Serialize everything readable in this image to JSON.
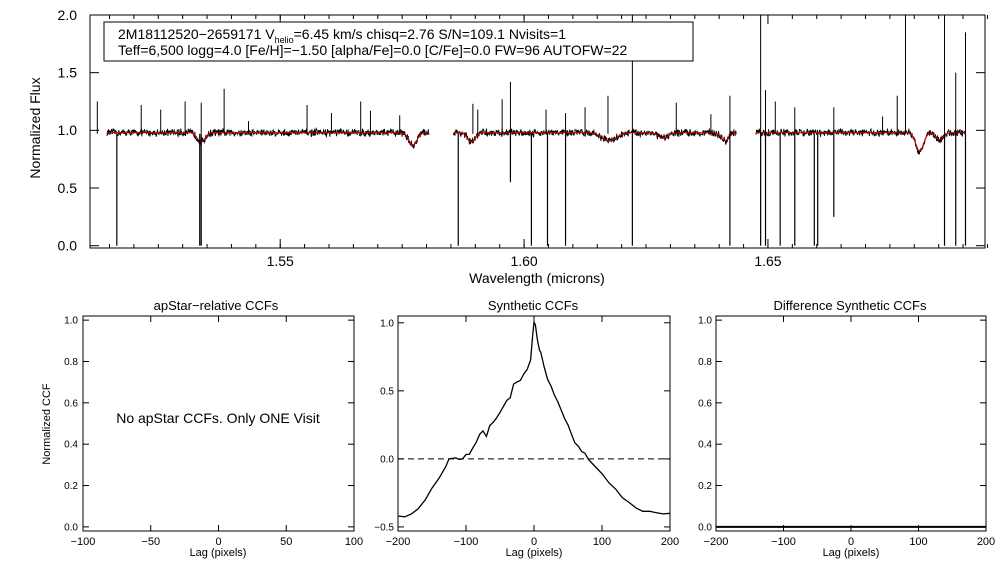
{
  "colors": {
    "axis": "#000000",
    "observed": "#000000",
    "model": "#cc0000",
    "background": "#ffffff"
  },
  "chart_data": [
    {
      "id": "spectrum",
      "type": "line",
      "title": "",
      "xlabel": "Wavelength (microns)",
      "ylabel": "Normalized Flux",
      "xlim": [
        1.511,
        1.6945
      ],
      "ylim": [
        -0.02,
        2.0
      ],
      "xticks": [
        1.55,
        1.6,
        1.65
      ],
      "xtick_labels": [
        "1.55",
        "1.60",
        "1.65"
      ],
      "yticks": [
        0.0,
        0.5,
        1.0,
        1.5,
        2.0
      ],
      "ytick_labels": [
        "0.0",
        "0.5",
        "1.0",
        "1.5",
        "2.0"
      ],
      "annotation": {
        "line1_prefix": "2M18112520−2659171  V",
        "line1_sub": "helio",
        "line1_suffix": "=6.45 km/s  chisq=2.76  S/N=109.1  Nvisits=1",
        "line2": "Teff=6,500 logg=4.0 [Fe/H]=−1.50 [alpha/Fe]=0.0 [C/Fe]=0.0 FW=96 AUTOFW=22"
      },
      "chip_ranges": [
        [
          1.5145,
          1.5805
        ],
        [
          1.5855,
          1.6435
        ],
        [
          1.6475,
          1.6905
        ]
      ],
      "series": [
        {
          "name": "observed spectrum",
          "color": "#000000",
          "continuum": 0.97,
          "noise": 0.028,
          "absorption_lines": [
            [
              1.5165,
              0.0,
              0.0002
            ],
            [
              1.5335,
              0.0,
              0.0002
            ],
            [
              1.5338,
              0.0,
              0.0002
            ],
            [
              1.5865,
              0.0,
              0.0002
            ],
            [
              1.5972,
              0.55,
              0.0002
            ],
            [
              1.6015,
              0.0,
              0.0002
            ],
            [
              1.6048,
              0.0,
              0.0002
            ],
            [
              1.6085,
              0.0,
              0.0002
            ],
            [
              1.6222,
              0.0,
              0.0002
            ],
            [
              1.6422,
              0.0,
              0.0002
            ],
            [
              1.6485,
              0.0,
              0.0002
            ],
            [
              1.6495,
              0.0,
              0.0002
            ],
            [
              1.6525,
              0.0,
              0.0002
            ],
            [
              1.6555,
              0.0,
              0.0002
            ],
            [
              1.6595,
              0.0,
              0.0002
            ],
            [
              1.6602,
              0.0,
              0.0002
            ],
            [
              1.6635,
              0.25,
              0.0002
            ],
            [
              1.6862,
              0.0,
              0.0002
            ],
            [
              1.6885,
              0.0,
              0.0002
            ],
            [
              1.6905,
              0.0,
              0.0002
            ]
          ],
          "emission_spikes": [
            [
              1.5125,
              1.25
            ],
            [
              1.5215,
              1.22
            ],
            [
              1.5255,
              1.18
            ],
            [
              1.5305,
              1.25
            ],
            [
              1.5338,
              1.24
            ],
            [
              1.5385,
              1.36
            ],
            [
              1.5435,
              1.08
            ],
            [
              1.5555,
              1.22
            ],
            [
              1.5605,
              1.15
            ],
            [
              1.5665,
              1.25
            ],
            [
              1.5685,
              1.17
            ],
            [
              1.5745,
              1.13
            ],
            [
              1.5895,
              1.23
            ],
            [
              1.5905,
              1.18
            ],
            [
              1.5955,
              1.27
            ],
            [
              1.5972,
              1.42
            ],
            [
              1.6045,
              1.18
            ],
            [
              1.6085,
              1.15
            ],
            [
              1.6125,
              1.2
            ],
            [
              1.6172,
              1.3
            ],
            [
              1.6222,
              2.0
            ],
            [
              1.6312,
              1.24
            ],
            [
              1.6383,
              1.14
            ],
            [
              1.6422,
              1.3
            ],
            [
              1.6485,
              2.0
            ],
            [
              1.6495,
              1.35
            ],
            [
              1.6515,
              1.25
            ],
            [
              1.6555,
              1.2
            ],
            [
              1.6635,
              1.2
            ],
            [
              1.6735,
              1.12
            ],
            [
              1.6765,
              1.3
            ],
            [
              1.6782,
              2.0
            ],
            [
              1.6862,
              2.0
            ],
            [
              1.6885,
              1.5
            ],
            [
              1.6905,
              1.85
            ]
          ]
        },
        {
          "name": "synthetic model",
          "color": "#cc0000",
          "continuum": 0.98,
          "absorption_features": [
            [
              1.5338,
              0.9,
              0.0008
            ],
            [
              1.5772,
              0.87,
              0.0008
            ],
            [
              1.5892,
              0.9,
              0.0008
            ],
            [
              1.6175,
              0.91,
              0.0015
            ],
            [
              1.6285,
              0.93,
              0.001
            ],
            [
              1.6412,
              0.91,
              0.0008
            ],
            [
              1.6811,
              0.82,
              0.0008
            ],
            [
              1.6852,
              0.92,
              0.0008
            ]
          ]
        }
      ]
    },
    {
      "id": "apstar_ccf",
      "type": "line",
      "title": "apStar−relative CCFs",
      "xlabel": "Lag (pixels)",
      "ylabel": "Normalized CCF",
      "xlim": [
        -100,
        100
      ],
      "ylim": [
        -0.02,
        1.02
      ],
      "xticks": [
        -100,
        -50,
        0,
        50,
        100
      ],
      "xtick_labels": [
        "−100",
        "−50",
        "0",
        "50",
        "100"
      ],
      "yticks": [
        0.0,
        0.2,
        0.4,
        0.6,
        0.8,
        1.0
      ],
      "ytick_labels": [
        "0.0",
        "0.2",
        "0.4",
        "0.6",
        "0.8",
        "1.0"
      ],
      "note": "No apStar CCFs.  Only ONE Visit",
      "series": []
    },
    {
      "id": "synthetic_ccf",
      "type": "line",
      "title": "Synthetic CCFs",
      "xlabel": "Lag (pixels)",
      "ylabel": "",
      "xlim": [
        -200,
        200
      ],
      "ylim": [
        -0.53,
        1.05
      ],
      "xticks": [
        -200,
        -100,
        0,
        100,
        200
      ],
      "xtick_labels": [
        "−200",
        "−100",
        "0",
        "100",
        "200"
      ],
      "yticks": [
        -0.5,
        0.0,
        0.5,
        1.0
      ],
      "ytick_labels": [
        "−0.5",
        "0.0",
        "0.5",
        "1.0"
      ],
      "zero_line": 0.0,
      "series": [
        {
          "name": "synthetic CCF",
          "x": [
            -200,
            -190,
            -180,
            -170,
            -160,
            -150,
            -140,
            -130,
            -125,
            -120,
            -115,
            -110,
            -105,
            -100,
            -95,
            -90,
            -85,
            -80,
            -75,
            -70,
            -65,
            -60,
            -55,
            -50,
            -45,
            -40,
            -35,
            -30,
            -25,
            -20,
            -15,
            -10,
            -5,
            -2,
            0,
            2,
            5,
            8,
            10,
            15,
            20,
            25,
            30,
            35,
            40,
            45,
            50,
            55,
            60,
            65,
            70,
            75,
            80,
            90,
            100,
            110,
            120,
            130,
            140,
            150,
            160,
            170,
            180,
            190,
            200
          ],
          "y": [
            -0.42,
            -0.42,
            -0.4,
            -0.36,
            -0.3,
            -0.22,
            -0.14,
            -0.06,
            0.0,
            0.0,
            0.01,
            -0.01,
            0.0,
            0.03,
            0.03,
            0.08,
            0.12,
            0.18,
            0.2,
            0.16,
            0.24,
            0.27,
            0.3,
            0.34,
            0.38,
            0.43,
            0.45,
            0.55,
            0.57,
            0.58,
            0.62,
            0.66,
            0.73,
            0.9,
            1.0,
            0.98,
            0.88,
            0.8,
            0.78,
            0.68,
            0.58,
            0.53,
            0.47,
            0.42,
            0.36,
            0.3,
            0.25,
            0.18,
            0.12,
            0.09,
            0.06,
            0.04,
            0.0,
            -0.06,
            -0.11,
            -0.17,
            -0.22,
            -0.28,
            -0.32,
            -0.36,
            -0.38,
            -0.39,
            -0.39,
            -0.4,
            -0.4
          ]
        }
      ]
    },
    {
      "id": "difference_ccf",
      "type": "line",
      "title": "Difference Synthetic CCFs",
      "xlabel": "Lag (pixels)",
      "ylabel": "",
      "xlim": [
        -200,
        200
      ],
      "ylim": [
        -0.02,
        1.02
      ],
      "xticks": [
        -200,
        -100,
        0,
        100,
        200
      ],
      "xtick_labels": [
        "−200",
        "−100",
        "0",
        "100",
        "200"
      ],
      "yticks": [
        0.0,
        0.2,
        0.4,
        0.6,
        0.8,
        1.0
      ],
      "ytick_labels": [
        "0.0",
        "0.2",
        "0.4",
        "0.6",
        "0.8",
        "1.0"
      ],
      "series": [
        {
          "name": "difference CCF",
          "x": [
            -200,
            200
          ],
          "y": [
            0.0,
            0.0
          ]
        }
      ]
    }
  ]
}
